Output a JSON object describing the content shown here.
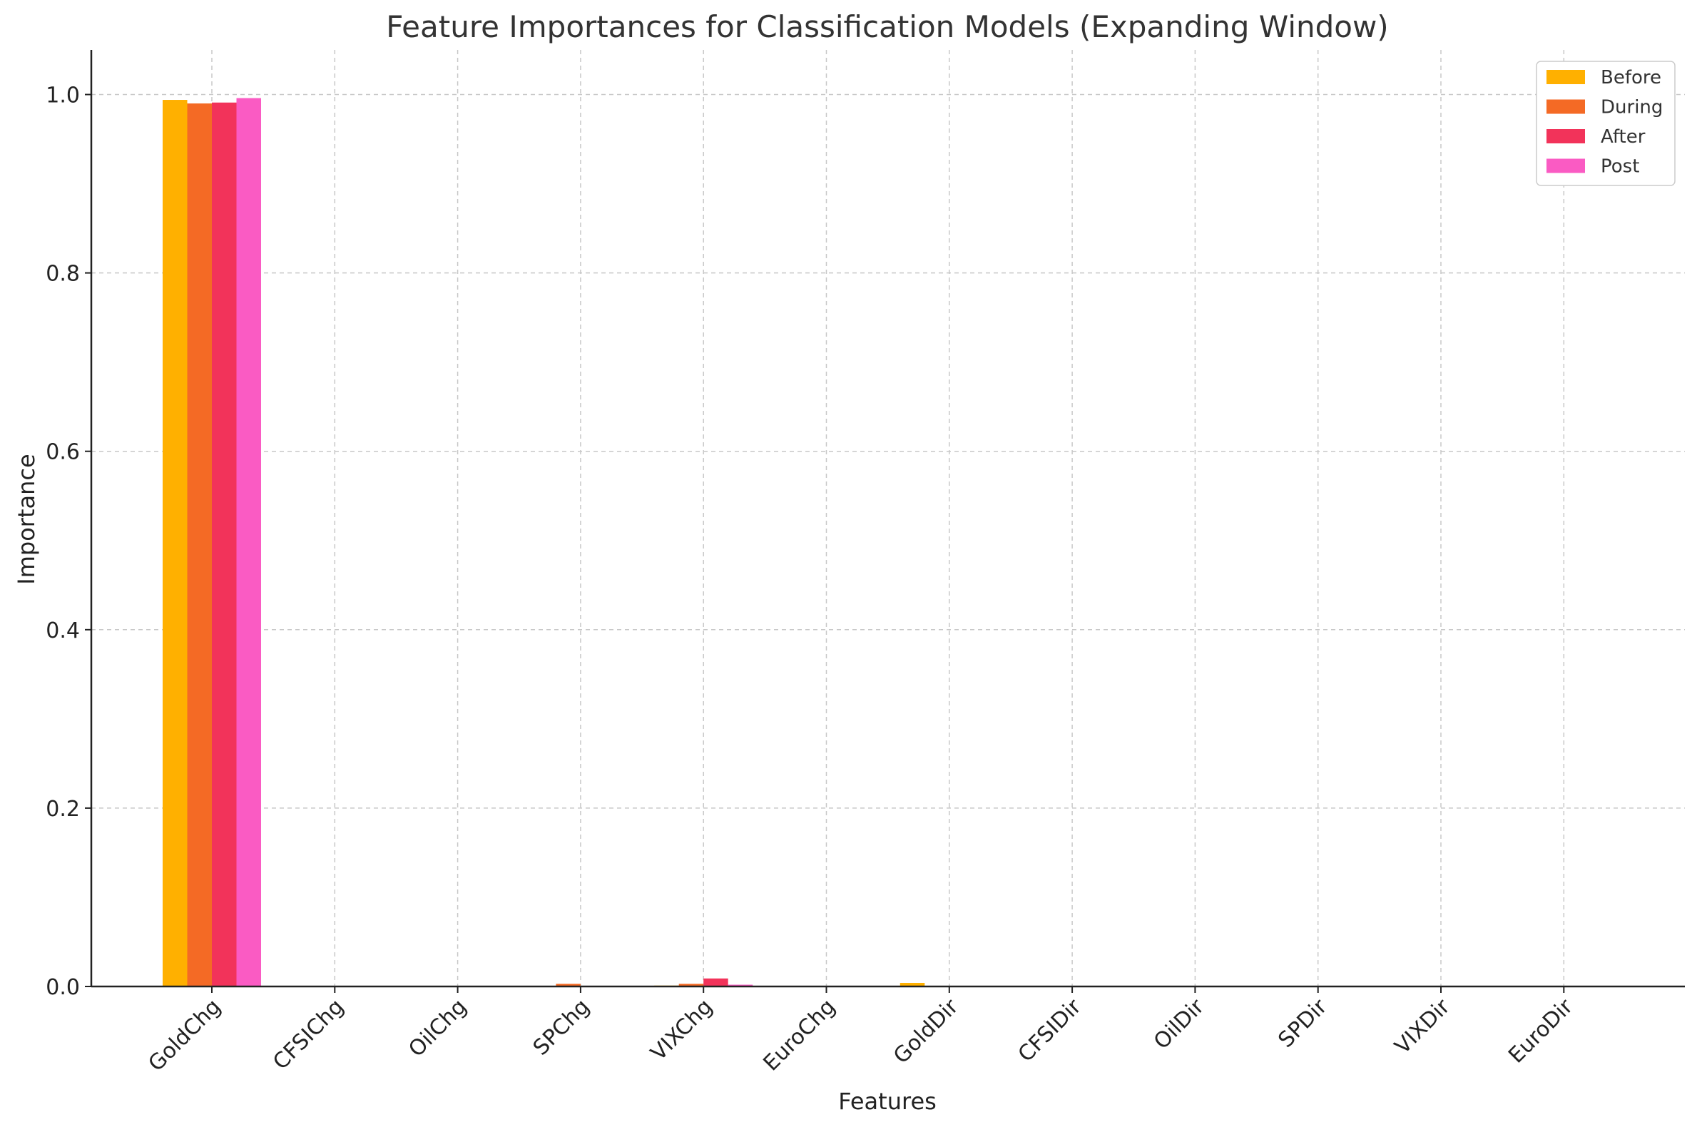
{
  "chart_data": {
    "type": "bar",
    "title": "Feature Importances for Classification Models (Expanding Window)",
    "xlabel": "Features",
    "ylabel": "Importance",
    "ylim": [
      0,
      1.05
    ],
    "yticks": [
      "0.0",
      "0.2",
      "0.4",
      "0.6",
      "0.8",
      "1.0"
    ],
    "grid": true,
    "legend_position": "top-right",
    "categories": [
      "GoldChg",
      "CFSIChg",
      "OilChg",
      "SPChg",
      "VIXChg",
      "EuroChg",
      "GoldDir",
      "CFSIDir",
      "OilDir",
      "SPDir",
      "VIXDir",
      "EuroDir"
    ],
    "series": [
      {
        "name": "Before",
        "color": "#FFB000",
        "values": [
          0.994,
          0.0,
          0.0,
          0.0,
          0.001,
          0.0,
          0.004,
          0.0,
          0.0,
          0.0,
          0.0,
          0.0
        ]
      },
      {
        "name": "During",
        "color": "#F46A25",
        "values": [
          0.99,
          0.0,
          0.0,
          0.003,
          0.003,
          0.0,
          0.0,
          0.0,
          0.0,
          0.0,
          0.0,
          0.0
        ]
      },
      {
        "name": "After",
        "color": "#F2335A",
        "values": [
          0.991,
          0.0,
          0.0,
          0.0,
          0.009,
          0.0,
          0.0,
          0.0,
          0.0,
          0.0,
          0.0,
          0.0
        ]
      },
      {
        "name": "Post",
        "color": "#FA5BC3",
        "values": [
          0.996,
          0.0,
          0.0,
          0.0,
          0.002,
          0.0,
          0.0,
          0.0,
          0.0,
          0.0,
          0.0,
          0.0
        ]
      }
    ]
  }
}
